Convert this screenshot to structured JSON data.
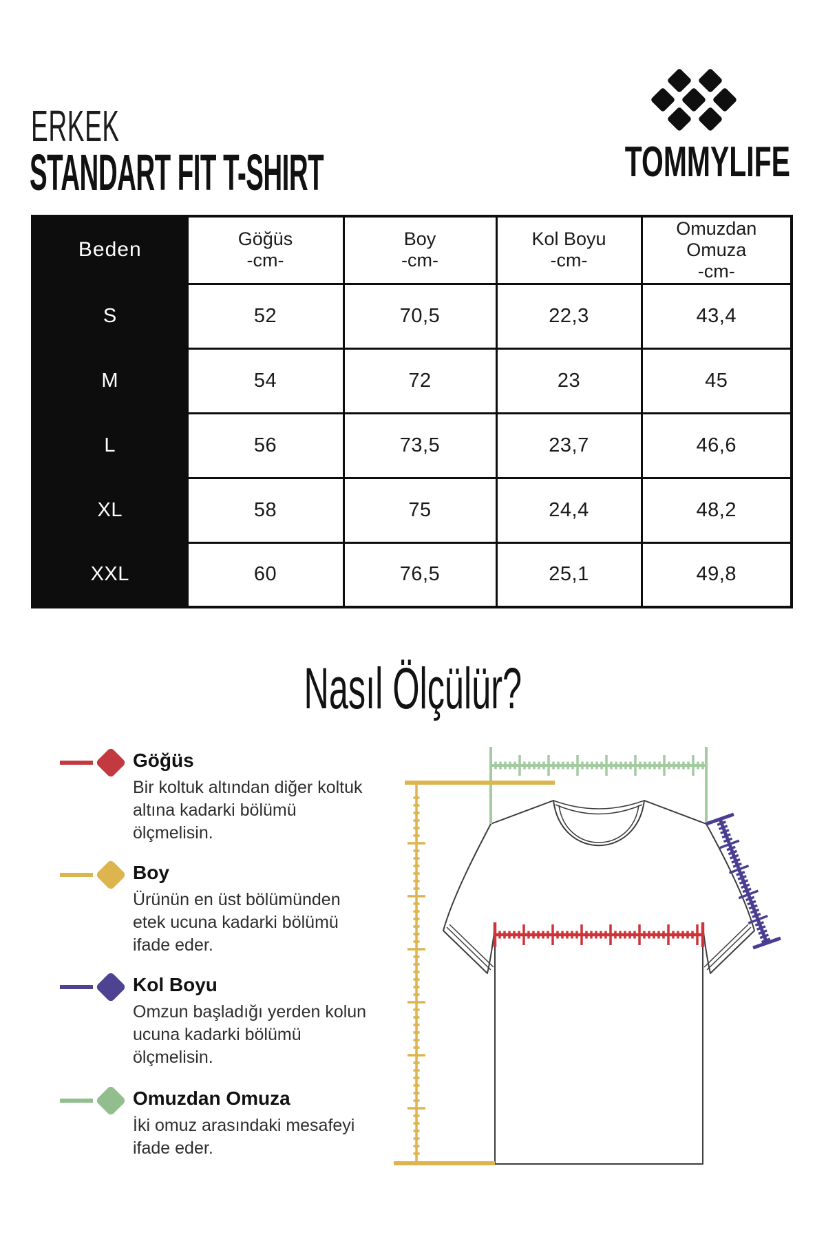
{
  "header": {
    "category": "ERKEK",
    "title": "STANDART FIT T-SHIRT",
    "brand": "TOMMYLIFE"
  },
  "size_table": {
    "size_column_header": "Beden",
    "columns": [
      {
        "label": "Göğüs",
        "unit": "-cm-"
      },
      {
        "label": "Boy",
        "unit": "-cm-"
      },
      {
        "label": "Kol Boyu",
        "unit": "-cm-"
      },
      {
        "label": "Omuzdan Omuza",
        "unit": "-cm-"
      }
    ],
    "rows": [
      {
        "size": "S",
        "values": [
          "52",
          "70,5",
          "22,3",
          "43,4"
        ]
      },
      {
        "size": "M",
        "values": [
          "54",
          "72",
          "23",
          "45"
        ]
      },
      {
        "size": "L",
        "values": [
          "56",
          "73,5",
          "23,7",
          "46,6"
        ]
      },
      {
        "size": "XL",
        "values": [
          "58",
          "75",
          "24,4",
          "48,2"
        ]
      },
      {
        "size": "XXL",
        "values": [
          "60",
          "76,5",
          "25,1",
          "49,8"
        ]
      }
    ]
  },
  "measurement_guide": {
    "title": "Nasıl Ölçülür?",
    "items": [
      {
        "name": "Göğüs",
        "color": "#c2393f",
        "description": "Bir koltuk altından diğer koltuk altına kadarki bölümü ölçmelisin."
      },
      {
        "name": "Boy",
        "color": "#ddb44e",
        "description": "Ürünün en üst bölümünden etek ucuna kadarki bölümü ifade eder."
      },
      {
        "name": "Kol Boyu",
        "color": "#4e4390",
        "description": "Omzun başladığı yerden kolun ucuna kadarki bölümü ölçmelisin."
      },
      {
        "name": "Omuzdan Omuza",
        "color": "#92be8e",
        "description": "İki omuz arasındaki mesafeyi ifade eder."
      }
    ]
  },
  "diagram": {
    "ruler_colors": {
      "shoulder": "#a4cba0",
      "length": "#ddb44e",
      "chest": "#cd3339",
      "sleeve": "#4a3e92"
    }
  }
}
